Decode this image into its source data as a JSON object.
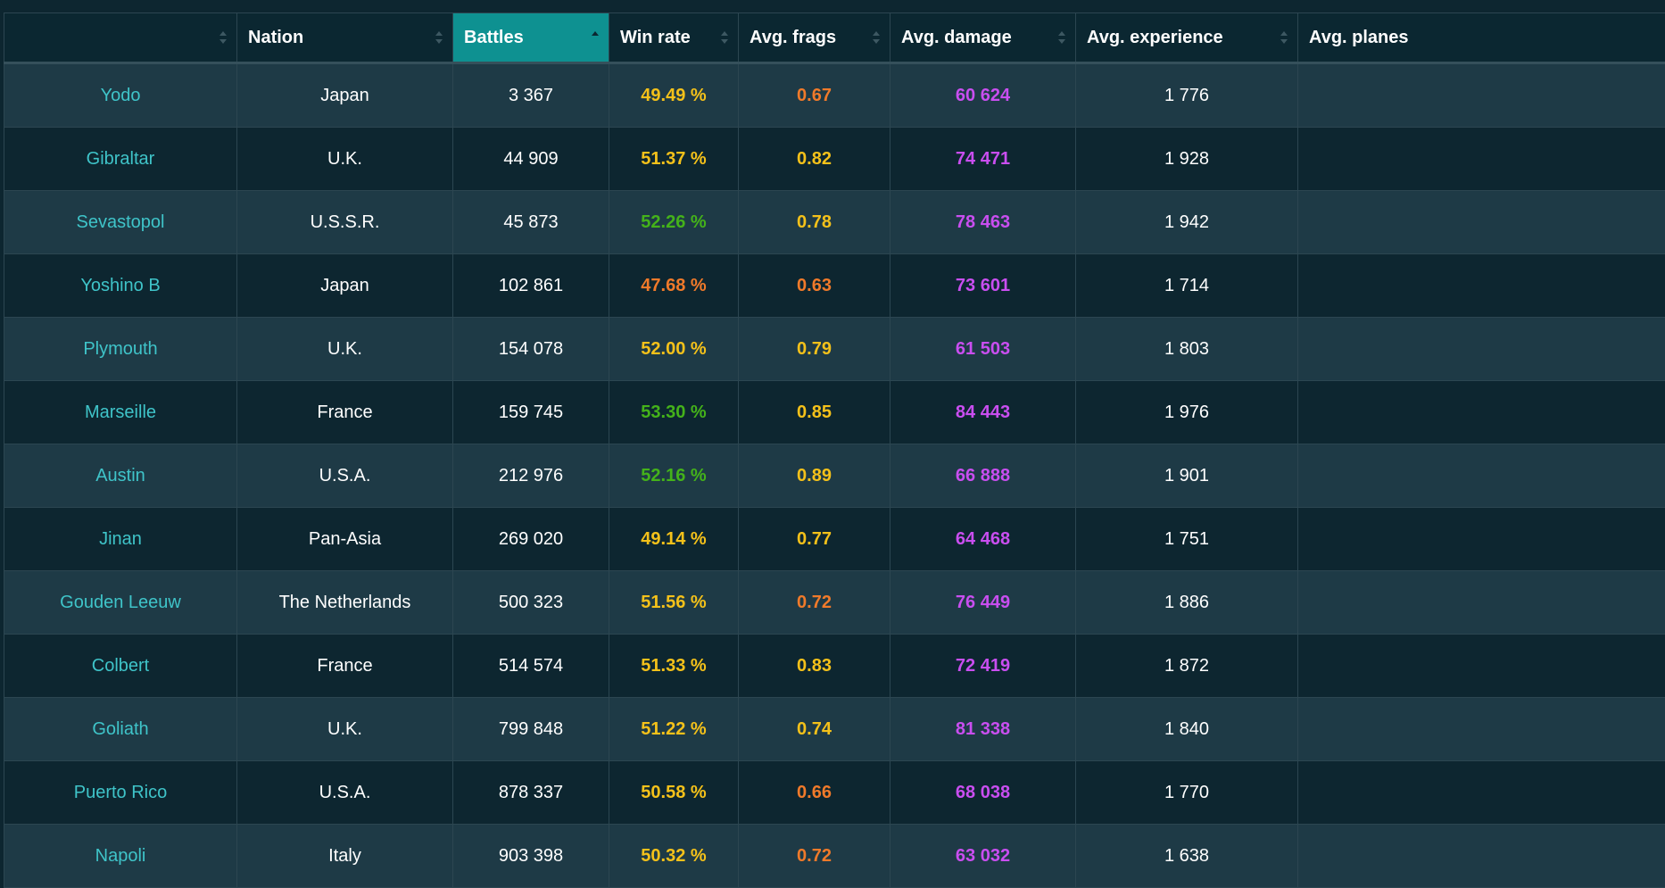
{
  "colors": {
    "header_active": "#0e9191",
    "ship_link": "#3fc4c9",
    "orange": "#f07a2a",
    "yellow": "#f4c11a",
    "green": "#44b21a",
    "purple": "#c94ef0"
  },
  "columns": [
    {
      "label": "",
      "sort": "none"
    },
    {
      "label": "Nation",
      "sort": "none"
    },
    {
      "label": "Battles",
      "sort": "asc",
      "active": true
    },
    {
      "label": "Win rate",
      "sort": "none"
    },
    {
      "label": "Avg. frags",
      "sort": "none"
    },
    {
      "label": "Avg. damage",
      "sort": "none"
    },
    {
      "label": "Avg. experience",
      "sort": "none"
    },
    {
      "label": "Avg. planes",
      "sort": "none"
    }
  ],
  "rows": [
    {
      "ship": "Yodo",
      "nation": "Japan",
      "battles": "3 367",
      "win_rate": "49.49 %",
      "win_color": "yellow",
      "frags": "0.67",
      "frags_color": "orange",
      "damage": "60 624",
      "experience": "1 776",
      "planes": ""
    },
    {
      "ship": "Gibraltar",
      "nation": "U.K.",
      "battles": "44 909",
      "win_rate": "51.37 %",
      "win_color": "yellow",
      "frags": "0.82",
      "frags_color": "yellow",
      "damage": "74 471",
      "experience": "1 928",
      "planes": ""
    },
    {
      "ship": "Sevastopol",
      "nation": "U.S.S.R.",
      "battles": "45 873",
      "win_rate": "52.26 %",
      "win_color": "green",
      "frags": "0.78",
      "frags_color": "yellow",
      "damage": "78 463",
      "experience": "1 942",
      "planes": ""
    },
    {
      "ship": "Yoshino B",
      "nation": "Japan",
      "battles": "102 861",
      "win_rate": "47.68 %",
      "win_color": "orange",
      "frags": "0.63",
      "frags_color": "orange",
      "damage": "73 601",
      "experience": "1 714",
      "planes": ""
    },
    {
      "ship": "Plymouth",
      "nation": "U.K.",
      "battles": "154 078",
      "win_rate": "52.00 %",
      "win_color": "yellow",
      "frags": "0.79",
      "frags_color": "yellow",
      "damage": "61 503",
      "experience": "1 803",
      "planes": ""
    },
    {
      "ship": "Marseille",
      "nation": "France",
      "battles": "159 745",
      "win_rate": "53.30 %",
      "win_color": "green",
      "frags": "0.85",
      "frags_color": "yellow",
      "damage": "84 443",
      "experience": "1 976",
      "planes": ""
    },
    {
      "ship": "Austin",
      "nation": "U.S.A.",
      "battles": "212 976",
      "win_rate": "52.16 %",
      "win_color": "green",
      "frags": "0.89",
      "frags_color": "yellow",
      "damage": "66 888",
      "experience": "1 901",
      "planes": ""
    },
    {
      "ship": "Jinan",
      "nation": "Pan-Asia",
      "battles": "269 020",
      "win_rate": "49.14 %",
      "win_color": "yellow",
      "frags": "0.77",
      "frags_color": "yellow",
      "damage": "64 468",
      "experience": "1 751",
      "planes": ""
    },
    {
      "ship": "Gouden Leeuw",
      "nation": "The Netherlands",
      "battles": "500 323",
      "win_rate": "51.56 %",
      "win_color": "yellow",
      "frags": "0.72",
      "frags_color": "orange",
      "damage": "76 449",
      "experience": "1 886",
      "planes": ""
    },
    {
      "ship": "Colbert",
      "nation": "France",
      "battles": "514 574",
      "win_rate": "51.33 %",
      "win_color": "yellow",
      "frags": "0.83",
      "frags_color": "yellow",
      "damage": "72 419",
      "experience": "1 872",
      "planes": ""
    },
    {
      "ship": "Goliath",
      "nation": "U.K.",
      "battles": "799 848",
      "win_rate": "51.22 %",
      "win_color": "yellow",
      "frags": "0.74",
      "frags_color": "yellow",
      "damage": "81 338",
      "experience": "1 840",
      "planes": ""
    },
    {
      "ship": "Puerto Rico",
      "nation": "U.S.A.",
      "battles": "878 337",
      "win_rate": "50.58 %",
      "win_color": "yellow",
      "frags": "0.66",
      "frags_color": "orange",
      "damage": "68 038",
      "experience": "1 770",
      "planes": ""
    },
    {
      "ship": "Napoli",
      "nation": "Italy",
      "battles": "903 398",
      "win_rate": "50.32 %",
      "win_color": "yellow",
      "frags": "0.72",
      "frags_color": "orange",
      "damage": "63 032",
      "experience": "1 638",
      "planes": ""
    }
  ]
}
